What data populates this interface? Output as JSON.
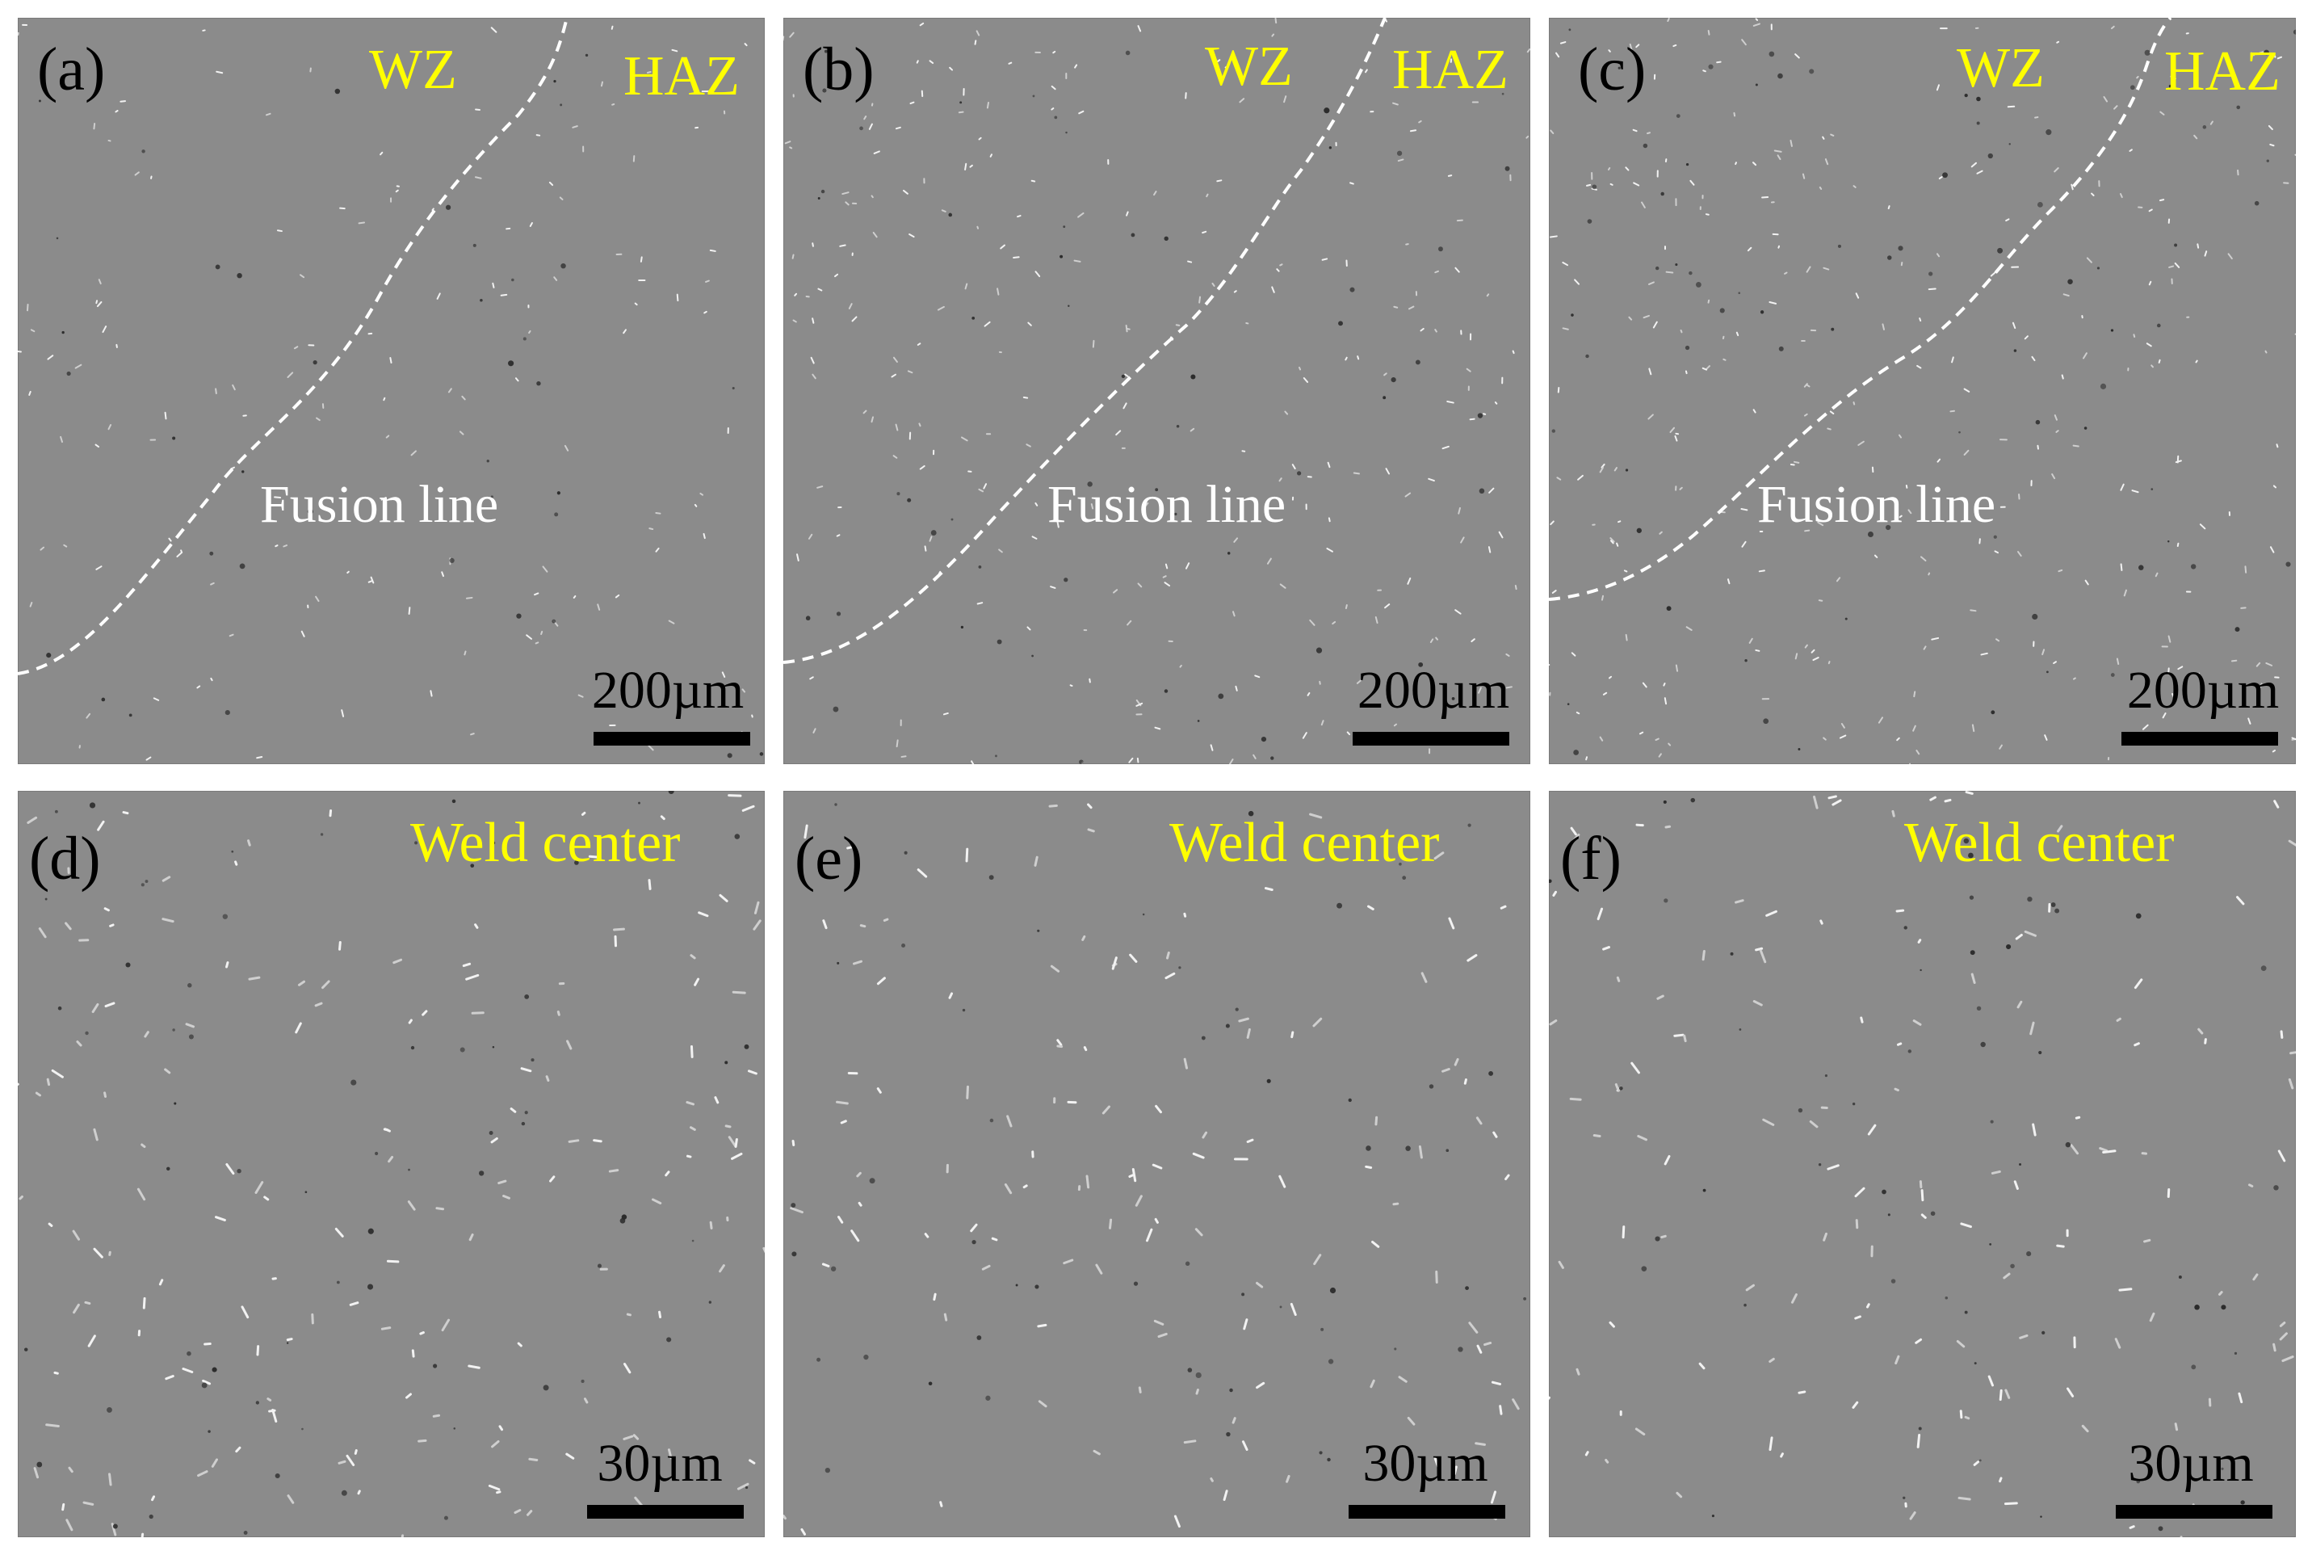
{
  "figure": {
    "panels": [
      {
        "id": "a",
        "tag": "(a)",
        "zone_left": "WZ",
        "zone_right": "HAZ",
        "fusion_label": "Fusion line",
        "scale": "200µm"
      },
      {
        "id": "b",
        "tag": "(b)",
        "zone_left": "WZ",
        "zone_right": "HAZ",
        "fusion_label": "Fusion line",
        "scale": "200µm"
      },
      {
        "id": "c",
        "tag": "(c)",
        "zone_left": "WZ",
        "zone_right": "HAZ",
        "fusion_label": "Fusion line",
        "scale": "200µm"
      },
      {
        "id": "d",
        "tag": "(d)",
        "region": "Weld center",
        "scale": "30µm"
      },
      {
        "id": "e",
        "tag": "(e)",
        "region": "Weld center",
        "scale": "30µm"
      },
      {
        "id": "f",
        "tag": "(f)",
        "region": "Weld center",
        "scale": "30µm"
      }
    ],
    "colors": {
      "micrograph_gray": "#8b8b8b",
      "zone_text": "#ffff00",
      "fusion_text": "#ffffff",
      "panel_tag": "#000000",
      "scale_bar": "#000000"
    }
  }
}
